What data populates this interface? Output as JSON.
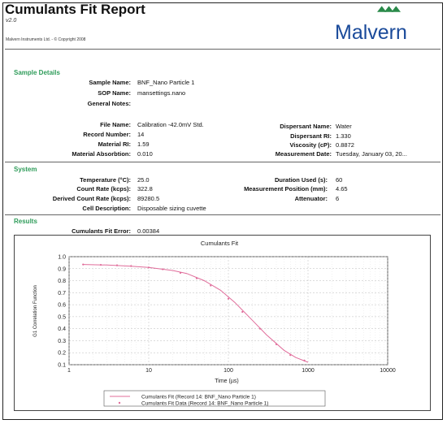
{
  "header": {
    "title": "Cumulants Fit Report",
    "version": "v2.0",
    "copyright": "Malvern Instruments Ltd. - © Copyright 2008",
    "logo_text": "Malvern"
  },
  "sample_details": {
    "heading": "Sample Details",
    "sample_name": {
      "label": "Sample Name:",
      "value": "BNF_Nano Particle 1"
    },
    "sop_name": {
      "label": "SOP Name:",
      "value": "mansettings.nano"
    },
    "general_notes": {
      "label": "General Notes:",
      "value": ""
    },
    "file_name": {
      "label": "File Name:",
      "value": "Calibration -42.0mV Std."
    },
    "record_number": {
      "label": "Record Number:",
      "value": "14"
    },
    "material_ri": {
      "label": "Material RI:",
      "value": "1.59"
    },
    "material_absorbtion": {
      "label": "Material Absorbtion:",
      "value": "0.010"
    },
    "dispersant_name": {
      "label": "Dispersant Name:",
      "value": "Water"
    },
    "dispersant_ri": {
      "label": "Dispersant RI:",
      "value": "1.330"
    },
    "viscosity": {
      "label": "Viscosity (cP):",
      "value": "0.8872"
    },
    "measurement_date": {
      "label": "Measurement Date:",
      "value": "Tuesday, January 03, 20..."
    }
  },
  "system": {
    "heading": "System",
    "temperature": {
      "label": "Temperature (°C):",
      "value": "25.0"
    },
    "count_rate": {
      "label": "Count Rate (kcps):",
      "value": "322.8"
    },
    "derived_count_rate": {
      "label": "Derived Count Rate (kcps):",
      "value": "89280.5"
    },
    "cell_description": {
      "label": "Cell Description:",
      "value": "Disposable sizing cuvette"
    },
    "duration_used": {
      "label": "Duration Used (s):",
      "value": "60"
    },
    "measurement_position": {
      "label": "Measurement Position (mm):",
      "value": "4.65"
    },
    "attenuator": {
      "label": "Attenuator:",
      "value": "6"
    }
  },
  "results": {
    "heading": "Results",
    "fit_error": {
      "label": "Cumulants Fit Error:",
      "value": "0.00384"
    }
  },
  "colors": {
    "section_heading": "#2f9c5a",
    "logo_text": "#1a4a9a",
    "logo_mark": "#2a8a4a",
    "fit_line": "#e06c9a",
    "data_points": "#e06c9a"
  },
  "chart_data": {
    "type": "line",
    "title": "Cumulants Fit",
    "xlabel": "Time (µs)",
    "ylabel": "G1 Correlation Function",
    "xscale": "log",
    "xlim": [
      1,
      10000
    ],
    "ylim": [
      0.1,
      1.0
    ],
    "x_ticks": [
      "1",
      "10",
      "100",
      "1000",
      "10000"
    ],
    "y_ticks": [
      "0.1",
      "0.2",
      "0.3",
      "0.4",
      "0.5",
      "0.6",
      "0.7",
      "0.8",
      "0.9",
      "1.0"
    ],
    "grid": true,
    "legend_position": "bottom",
    "series": [
      {
        "name": "Cumulants Fit (Record 14: BNF_Nano Particle 1)",
        "style": "line",
        "x": [
          1.5,
          3,
          6,
          10,
          20,
          30,
          50,
          80,
          120,
          200,
          300,
          500,
          700,
          1000
        ],
        "y": [
          0.935,
          0.93,
          0.92,
          0.91,
          0.885,
          0.86,
          0.8,
          0.72,
          0.62,
          0.47,
          0.35,
          0.22,
          0.16,
          0.12
        ]
      },
      {
        "name": "Cumulants Fit Data (Record 14: BNF_Nano Particle 1)",
        "style": "points",
        "x": [
          1.5,
          2.5,
          4,
          6,
          10,
          15,
          25,
          40,
          60,
          100,
          150,
          250,
          400,
          600,
          900
        ],
        "y": [
          0.935,
          0.932,
          0.928,
          0.922,
          0.91,
          0.895,
          0.865,
          0.82,
          0.76,
          0.65,
          0.54,
          0.4,
          0.27,
          0.18,
          0.135
        ]
      }
    ]
  }
}
